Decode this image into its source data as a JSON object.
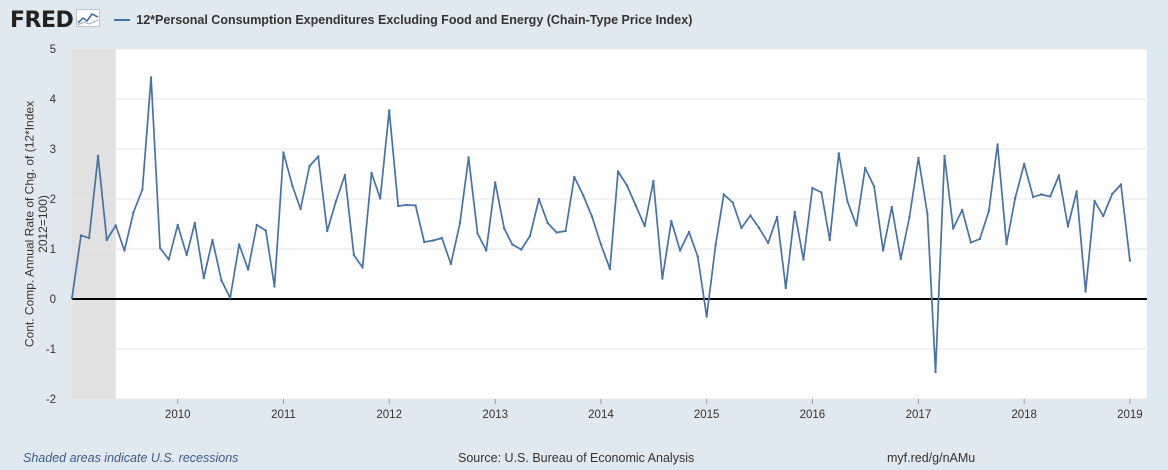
{
  "header": {
    "logo_text": "FRED",
    "logo_icon": "line-chart-icon",
    "series_label": "12*Personal Consumption Expenditures Excluding Food and Energy (Chain-Type Price Index)",
    "series_color": "#4572a7"
  },
  "footer": {
    "recession_note": "Shaded areas indicate U.S. recessions",
    "source": "Source: U.S. Bureau of Economic Analysis",
    "short_url": "myf.red/g/nAMu"
  },
  "chart_data": {
    "type": "line",
    "title": "",
    "ylabel": "Cont. Comp. Annual Rate of Chg. of (12*Index 2012=100)",
    "xlabel": "",
    "ylim": [
      -2,
      5
    ],
    "yticks": [
      -2,
      -1,
      0,
      1,
      2,
      3,
      4,
      5
    ],
    "xlim": [
      "2009-01-01",
      "2019-03-01"
    ],
    "xtick_labels": [
      "2010",
      "2011",
      "2012",
      "2013",
      "2014",
      "2015",
      "2016",
      "2017",
      "2018",
      "2019"
    ],
    "grid": true,
    "zero_line": true,
    "recession_shading": [
      {
        "start": "2009-01-01",
        "end": "2009-06-01"
      }
    ],
    "series": [
      {
        "color": "#4572a7",
        "start": "2009-01",
        "frequency": "monthly",
        "values": [
          0.02,
          1.27,
          1.22,
          2.86,
          1.18,
          1.47,
          0.97,
          1.73,
          2.19,
          4.43,
          1.02,
          0.79,
          1.48,
          0.88,
          1.52,
          0.42,
          1.18,
          0.37,
          0.02,
          1.09,
          0.59,
          1.48,
          1.37,
          0.25,
          2.93,
          2.26,
          1.8,
          2.66,
          2.85,
          1.36,
          1.95,
          2.48,
          0.88,
          0.63,
          2.52,
          2.01,
          3.77,
          1.86,
          1.88,
          1.87,
          1.14,
          1.17,
          1.22,
          0.7,
          1.51,
          2.83,
          1.31,
          0.97,
          2.33,
          1.41,
          1.09,
          0.99,
          1.26,
          2.0,
          1.52,
          1.33,
          1.36,
          2.44,
          2.07,
          1.65,
          1.09,
          0.6,
          2.55,
          2.27,
          1.87,
          1.46,
          2.36,
          0.41,
          1.56,
          0.97,
          1.34,
          0.85,
          -0.35,
          1.09,
          2.09,
          1.93,
          1.42,
          1.67,
          1.42,
          1.12,
          1.64,
          0.22,
          1.74,
          0.79,
          2.22,
          2.13,
          1.18,
          2.91,
          1.95,
          1.47,
          2.62,
          2.25,
          0.97,
          1.84,
          0.8,
          1.64,
          2.82,
          1.7,
          -1.46,
          2.86,
          1.41,
          1.78,
          1.13,
          1.2,
          1.76,
          3.09,
          1.1,
          2.02,
          2.7,
          2.04,
          2.09,
          2.05,
          2.47,
          1.45,
          2.15,
          0.15,
          1.96,
          1.66,
          2.1,
          2.29,
          0.77
        ]
      }
    ]
  }
}
